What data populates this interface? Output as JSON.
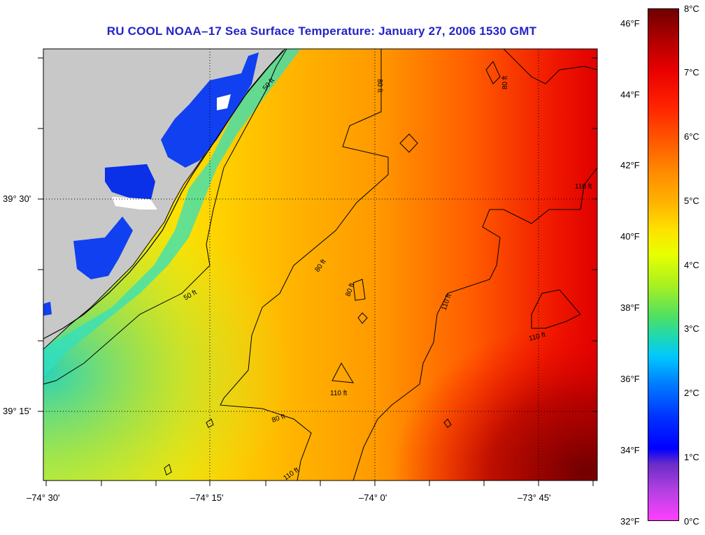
{
  "title": "RU COOL  NOAA–17  Sea Surface Temperature:  January 27, 2006 1530 GMT",
  "axes": {
    "y_labels": [
      "39° 30'",
      "39° 15'"
    ],
    "x_labels": [
      "–74° 30'",
      "–74° 15'",
      "–74° 0'",
      "–73° 45'"
    ]
  },
  "colorbar": {
    "fahrenheit": [
      "46°F",
      "44°F",
      "42°F",
      "40°F",
      "38°F",
      "36°F",
      "34°F",
      "32°F"
    ],
    "celsius": [
      "8°C",
      "7°C",
      "6°C",
      "5°C",
      "4°C",
      "3°C",
      "2°C",
      "1°C",
      "0°C"
    ]
  },
  "contour_labels": [
    "50 ft",
    "50 ft",
    "80 ft",
    "80 ft",
    "80 ft",
    "80 ft",
    "80 ft",
    "110 ft",
    "110 ft",
    "110 ft",
    "110 ft",
    "110 ft"
  ],
  "colors": {
    "land": "#c8c8c8",
    "title": "#2323c8"
  }
}
